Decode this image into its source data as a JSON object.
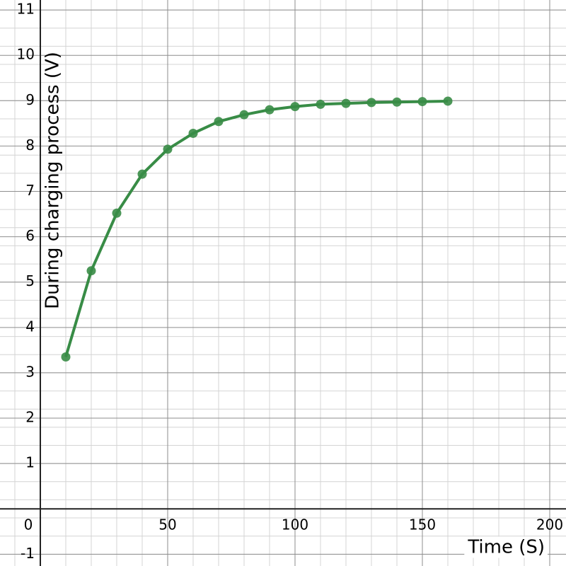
{
  "chart_data": {
    "type": "line",
    "x_label": "Time (S)",
    "y_label": "During charging process (V)",
    "x": [
      10,
      20,
      30,
      40,
      50,
      60,
      70,
      80,
      90,
      100,
      110,
      120,
      130,
      140,
      150,
      160
    ],
    "series": [
      {
        "name": null,
        "color": "#388c46",
        "values": [
          3.35,
          5.25,
          6.52,
          7.38,
          7.93,
          8.28,
          8.54,
          8.69,
          8.8,
          8.87,
          8.92,
          8.94,
          8.96,
          8.97,
          8.98,
          8.99
        ]
      }
    ],
    "xlim": [
      -15.83,
      206.39
    ],
    "ylim": [
      -1.26,
      11.22
    ],
    "xticks": [
      0,
      50,
      100,
      150,
      200
    ],
    "yticks": [
      -1,
      1,
      2,
      3,
      4,
      5,
      6,
      7,
      8,
      9,
      10,
      11
    ],
    "grid": true
  }
}
